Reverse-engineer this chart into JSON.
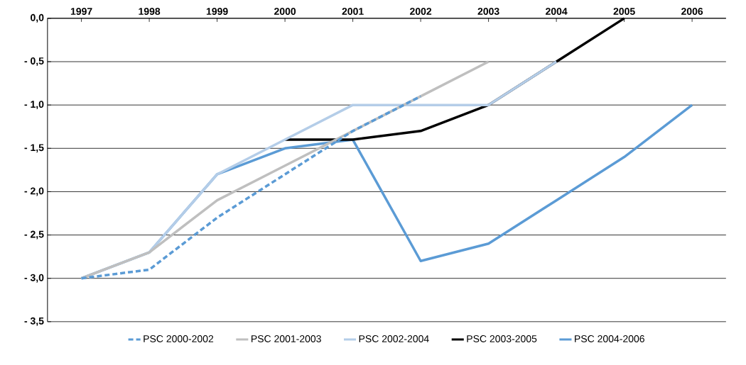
{
  "chart_data": {
    "type": "line",
    "categories": [
      "1997",
      "1998",
      "1999",
      "2000",
      "2001",
      "2002",
      "2003",
      "2004",
      "2005",
      "2006"
    ],
    "series": [
      {
        "name": "PSC 2000-2002",
        "color": "#5b9bd5",
        "line_style": "dashed",
        "values": [
          -3.0,
          -2.9,
          -2.3,
          -1.8,
          -1.3,
          -0.9,
          null,
          null,
          null,
          null
        ]
      },
      {
        "name": "PSC 2001-2003",
        "color": "#bfbfbf",
        "values": [
          -3.0,
          -2.7,
          -2.1,
          -1.7,
          -1.3,
          -0.9,
          -0.5,
          null,
          null,
          null
        ]
      },
      {
        "name": "PSC 2002-2004",
        "color": "#b4cde8",
        "values": [
          -3.0,
          -2.7,
          -1.8,
          -1.4,
          -1.0,
          -1.0,
          -1.0,
          -0.5,
          null,
          null
        ]
      },
      {
        "name": "PSC 2003-2005",
        "color": "#000000",
        "values": [
          null,
          null,
          null,
          -1.4,
          -1.4,
          -1.3,
          -1.0,
          -0.5,
          0.0,
          null
        ]
      },
      {
        "name": "PSC 2004-2006",
        "color": "#5b9bd5",
        "values": [
          -3.0,
          -2.7,
          -1.8,
          -1.5,
          -1.4,
          -2.8,
          -2.6,
          -2.1,
          -1.6,
          -1.0
        ]
      }
    ],
    "ylim": [
      -3.5,
      0
    ],
    "yticks": [
      {
        "value": 0,
        "label": "0,0"
      },
      {
        "value": -0.5,
        "label": "- 0,5"
      },
      {
        "value": -1.0,
        "label": "- 1,0"
      },
      {
        "value": -1.5,
        "label": "- 1,5"
      },
      {
        "value": -2.0,
        "label": "- 2,0"
      },
      {
        "value": -2.5,
        "label": "- 2,5"
      },
      {
        "value": -3.0,
        "label": "- 3,0"
      },
      {
        "value": -3.5,
        "label": "- 3,5"
      }
    ],
    "grid": "y",
    "legend": "bottom",
    "marker": "none",
    "line_style": "solid"
  }
}
